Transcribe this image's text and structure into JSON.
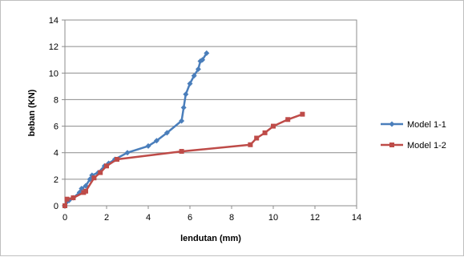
{
  "chart_data": {
    "type": "line",
    "title": "",
    "xlabel": "lendutan (mm)",
    "ylabel": "beban (KN)",
    "xlim": [
      0,
      14
    ],
    "ylim": [
      0,
      14
    ],
    "xticks": [
      0,
      2,
      4,
      6,
      8,
      10,
      12,
      14
    ],
    "yticks": [
      0,
      2,
      4,
      6,
      8,
      10,
      12,
      14
    ],
    "xtick_labels": [
      "0",
      "2",
      "4",
      "6",
      "8",
      "10",
      "12",
      "14"
    ],
    "ytick_labels": [
      "0",
      "2",
      "4",
      "6",
      "8",
      "10",
      "12",
      "14"
    ],
    "grid": "horizontal",
    "legend_position": "right",
    "series": [
      {
        "name": "Model 1-1",
        "color": "#4a7ebb",
        "marker": "diamond",
        "x": [
          0,
          0.2,
          0.4,
          0.7,
          0.8,
          1.0,
          1.2,
          1.3,
          1.6,
          1.9,
          2.1,
          2.4,
          3.0,
          4.0,
          4.4,
          4.9,
          5.6,
          5.7,
          5.8,
          6.0,
          6.2,
          6.4,
          6.5,
          6.6,
          6.8
        ],
        "y": [
          0,
          0.4,
          0.6,
          1.0,
          1.3,
          1.5,
          2.0,
          2.3,
          2.5,
          3.0,
          3.2,
          3.5,
          4.0,
          4.5,
          4.9,
          5.5,
          6.4,
          7.4,
          8.4,
          9.2,
          9.8,
          10.3,
          10.9,
          11.0,
          11.5
        ]
      },
      {
        "name": "Model 1-2",
        "color": "#be4b48",
        "marker": "square",
        "x": [
          0,
          0.1,
          0.4,
          0.9,
          1.0,
          1.4,
          1.7,
          2.0,
          2.5,
          5.6,
          8.9,
          9.2,
          9.6,
          10.0,
          10.7,
          11.4
        ],
        "y": [
          0,
          0.5,
          0.6,
          1.0,
          1.1,
          2.1,
          2.5,
          3.0,
          3.5,
          4.1,
          4.6,
          5.1,
          5.5,
          6.0,
          6.5,
          6.9
        ]
      }
    ]
  },
  "colors": {
    "plot_border": "#8c8c8c",
    "gridline": "#8c8c8c",
    "frame_border": "#bfbfbf",
    "background": "#ffffff"
  }
}
